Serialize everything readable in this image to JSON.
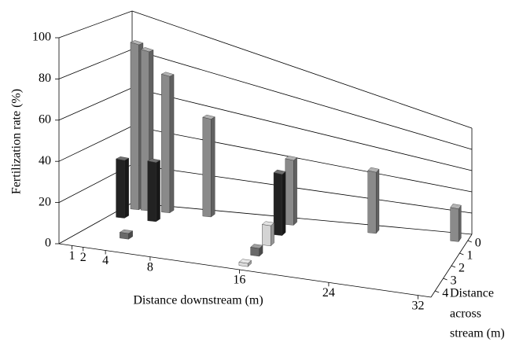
{
  "chart_data": {
    "type": "bar3d",
    "ylabel": "Fertilization rate (%)",
    "xlabel": "Distance downstream (m)",
    "zlabel": [
      "Distance",
      "across",
      "stream (m)"
    ],
    "x": [
      1,
      2,
      4,
      8,
      16,
      24,
      32
    ],
    "xlim": [
      0,
      32
    ],
    "xticks": [
      1,
      2,
      4,
      8,
      16,
      24,
      32
    ],
    "ylim": [
      0,
      100
    ],
    "yticks": [
      0,
      20,
      40,
      60,
      80,
      100
    ],
    "zlim": [
      0,
      4
    ],
    "zticks": [
      0,
      1,
      2,
      3,
      4
    ],
    "grid": true,
    "series": [
      {
        "depth": 0,
        "color": "#8a8a8a",
        "values": [
          87,
          85,
          75,
          57,
          43,
          47,
          30
        ]
      },
      {
        "depth": 1,
        "color": "#222222",
        "values": [
          30,
          null,
          32,
          null,
          40,
          null,
          null
        ]
      },
      {
        "depth": 2,
        "color": "#d4d4d4",
        "values": [
          null,
          null,
          null,
          null,
          13,
          null,
          null
        ]
      },
      {
        "depth": 3,
        "color": "#6a6a6a",
        "values": [
          null,
          null,
          3,
          null,
          5,
          null,
          null
        ]
      },
      {
        "depth": 4,
        "color": "#dcdcdc",
        "values": [
          null,
          null,
          null,
          null,
          2,
          null,
          null
        ]
      }
    ]
  }
}
